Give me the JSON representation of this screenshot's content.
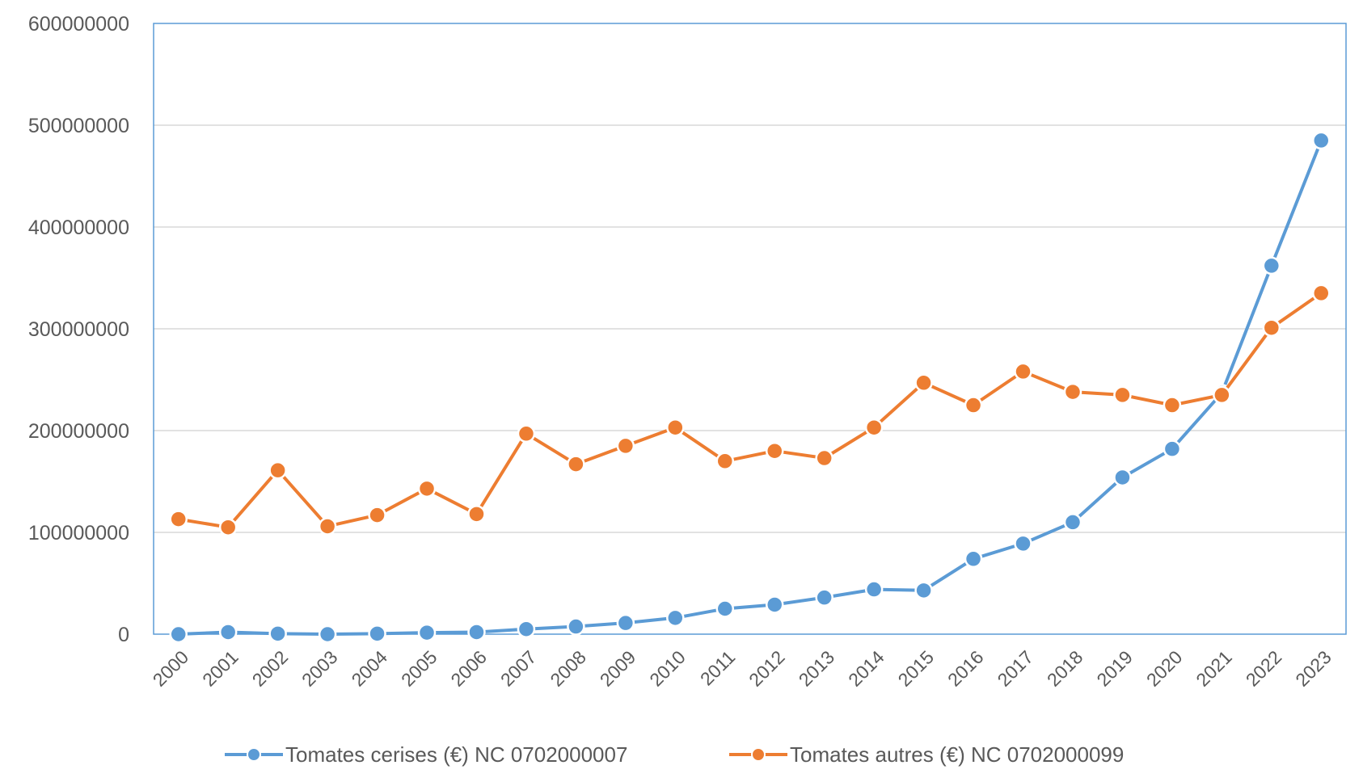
{
  "chart_data": {
    "type": "line",
    "title": "",
    "xlabel": "",
    "ylabel": "",
    "ylim": [
      0,
      600000000
    ],
    "y_ticks": [
      "0",
      "100000000",
      "200000000",
      "300000000",
      "400000000",
      "500000000",
      "600000000"
    ],
    "grid": "horizontal",
    "legend_position": "bottom",
    "categories": [
      "2000",
      "2001",
      "2002",
      "2003",
      "2004",
      "2005",
      "2006",
      "2007",
      "2008",
      "2009",
      "2010",
      "2011",
      "2012",
      "2013",
      "2014",
      "2015",
      "2016",
      "2017",
      "2018",
      "2019",
      "2020",
      "2021",
      "2022",
      "2023"
    ],
    "series": [
      {
        "name": "Tomates cerises (€) NC 0702000007",
        "color": "#5b9bd5",
        "values": [
          0,
          2000000,
          500000,
          0,
          500000,
          1500000,
          2000000,
          5000000,
          7500000,
          11000000,
          16000000,
          25000000,
          29000000,
          36000000,
          44000000,
          43000000,
          74000000,
          89000000,
          110000000,
          154000000,
          182000000,
          237000000,
          362000000,
          485000000
        ]
      },
      {
        "name": "Tomates autres (€) NC 0702000099",
        "color": "#ed7d31",
        "values": [
          113000000,
          105000000,
          161000000,
          106000000,
          117000000,
          143000000,
          118000000,
          197000000,
          167000000,
          185000000,
          203000000,
          170000000,
          180000000,
          173000000,
          203000000,
          247000000,
          225000000,
          258000000,
          238000000,
          235000000,
          225000000,
          235000000,
          301000000,
          335000000
        ]
      }
    ]
  }
}
